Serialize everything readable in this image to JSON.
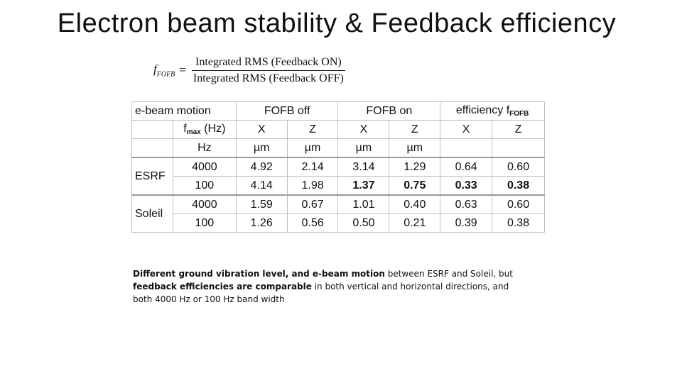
{
  "title": "Electron beam stability & Feedback efficiency",
  "formula": {
    "lhs_main": "f",
    "lhs_sub": "FOFB",
    "equals": "=",
    "numerator": "Integrated RMS (Feedback ON)",
    "denominator": "Integrated RMS (Feedback OFF)"
  },
  "table": {
    "header1": [
      "e-beam motion",
      "FOFB off",
      "FOFB on",
      "efficiency f"
    ],
    "header1_eff_sub": "FOFB",
    "header2": {
      "fmax_main": "f",
      "fmax_sub": "max",
      "fmax_unit": " (Hz)",
      "cols": [
        "X",
        "Z",
        "X",
        "Z",
        "X",
        "Z"
      ]
    },
    "units": [
      "Hz",
      "µm",
      "µm",
      "µm",
      "µm"
    ],
    "rows": [
      {
        "facility": "ESRF",
        "fmax": "4000",
        "off_x": "4.92",
        "off_z": "2.14",
        "on_x": "3.14",
        "on_z": "1.29",
        "eff_x": "0.64",
        "eff_z": "0.60"
      },
      {
        "facility": "",
        "fmax": "100",
        "off_x": "4.14",
        "off_z": "1.98",
        "on_x": "1.37",
        "on_z": "0.75",
        "eff_x": "0.33",
        "eff_z": "0.38"
      },
      {
        "facility": "Soleil",
        "fmax": "4000",
        "off_x": "1.59",
        "off_z": "0.67",
        "on_x": "1.01",
        "on_z": "0.40",
        "eff_x": "0.63",
        "eff_z": "0.60"
      },
      {
        "facility": "",
        "fmax": "100",
        "off_x": "1.26",
        "off_z": "0.56",
        "on_x": "0.50",
        "on_z": "0.21",
        "eff_x": "0.39",
        "eff_z": "0.38"
      }
    ]
  },
  "note": {
    "part1_bold": "Different ground vibration level, and e-beam motion",
    "part2": " between ESRF and Soleil, but ",
    "part3_bold": "feedback efficiencies are comparable",
    "part4": " in both vertical and horizontal directions, and both 4000 Hz or 100 Hz band width"
  }
}
